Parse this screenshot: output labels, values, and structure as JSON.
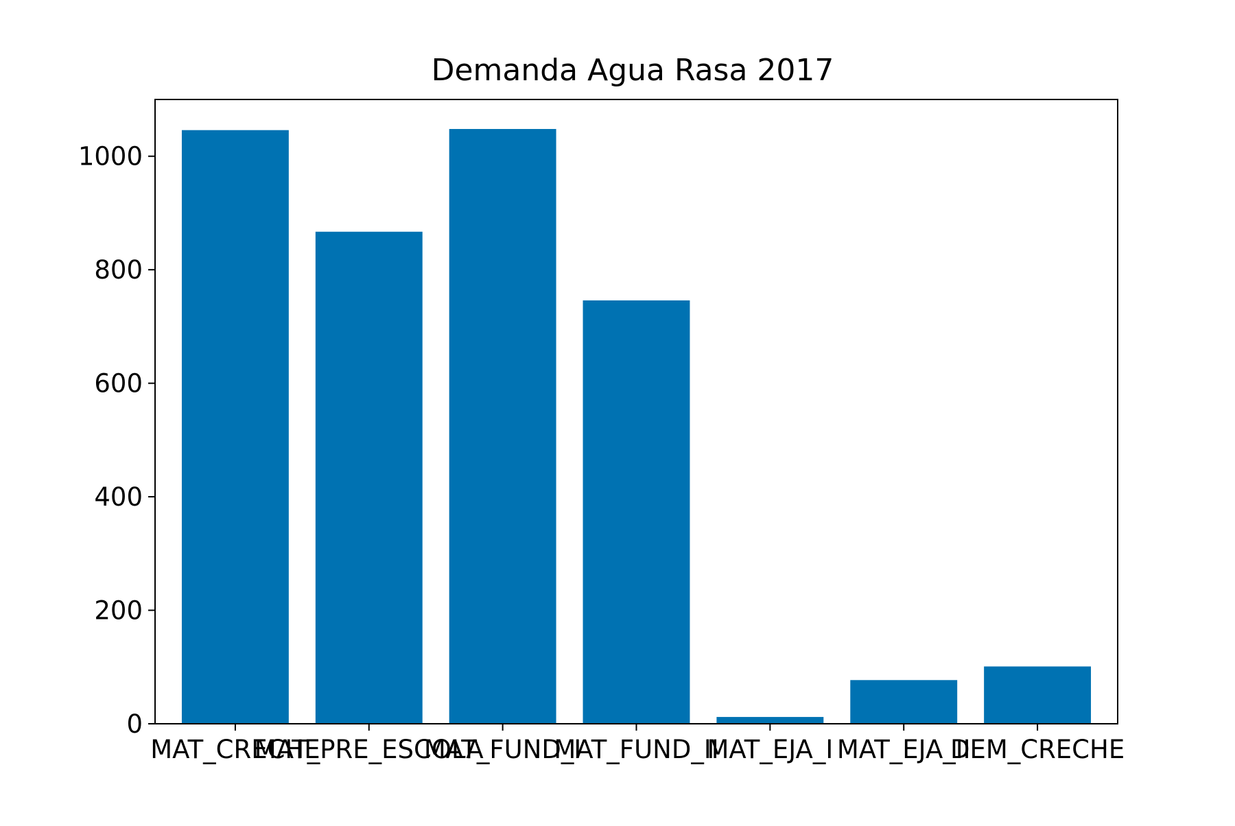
{
  "chart_data": {
    "type": "bar",
    "title": "Demanda Agua Rasa 2017",
    "xlabel": "",
    "ylabel": "",
    "categories": [
      "MAT_CRECHE",
      "MAT_PRE_ESCOLA",
      "MAT_FUND_I",
      "MAT_FUND_II",
      "MAT_EJA_I",
      "MAT_EJA_II",
      "DEM_CRECHE"
    ],
    "values": [
      1046,
      867,
      1048,
      746,
      12,
      77,
      101
    ],
    "ylim": [
      0,
      1100
    ],
    "yticks": [
      0,
      200,
      400,
      600,
      800,
      1000
    ],
    "bar_color": "#0072b2",
    "grid": false,
    "legend": "none"
  }
}
